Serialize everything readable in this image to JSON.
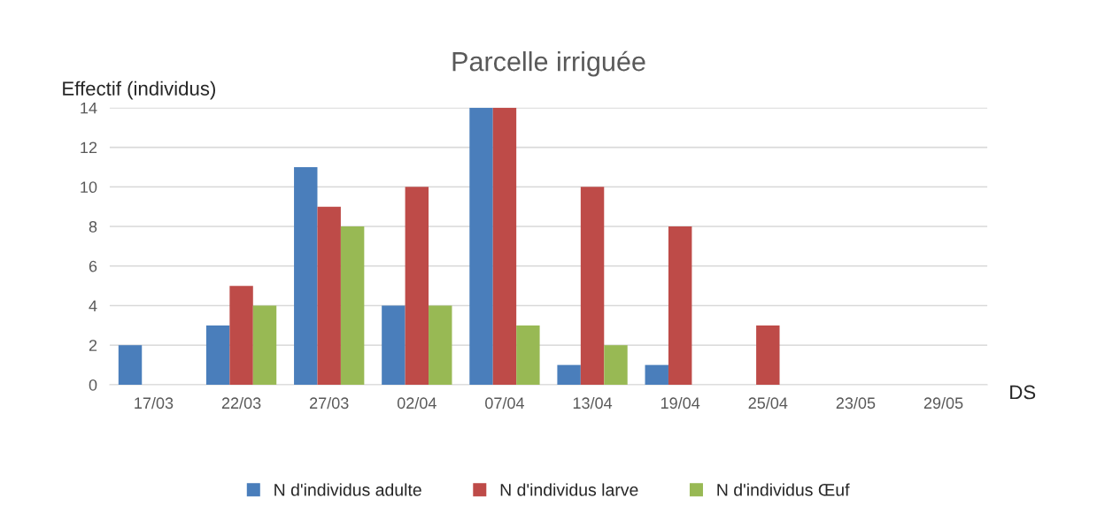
{
  "chart_data": {
    "type": "bar",
    "title": "Parcelle irriguée",
    "xlabel": "DS",
    "ylabel": "Effectif (individus)",
    "categories": [
      "17/03",
      "22/03",
      "27/03",
      "02/04",
      "07/04",
      "13/04",
      "19/04",
      "25/04",
      "23/05",
      "29/05"
    ],
    "series": [
      {
        "name": "N d'individus adulte",
        "color": "#4a7ebb",
        "values": [
          2,
          3,
          11,
          4,
          14,
          1,
          1,
          0,
          0,
          0
        ]
      },
      {
        "name": "N d'individus larve",
        "color": "#be4b48",
        "values": [
          0,
          5,
          9,
          10,
          14,
          10,
          8,
          3,
          0,
          0
        ]
      },
      {
        "name": "N d'individus Œuf",
        "color": "#98b954",
        "values": [
          0,
          4,
          8,
          4,
          3,
          2,
          0,
          0,
          0,
          0
        ]
      }
    ],
    "ylim": [
      0,
      14
    ],
    "yticks": [
      0,
      2,
      4,
      6,
      8,
      10,
      12,
      14
    ],
    "grid": "y",
    "legend": "bottom"
  }
}
